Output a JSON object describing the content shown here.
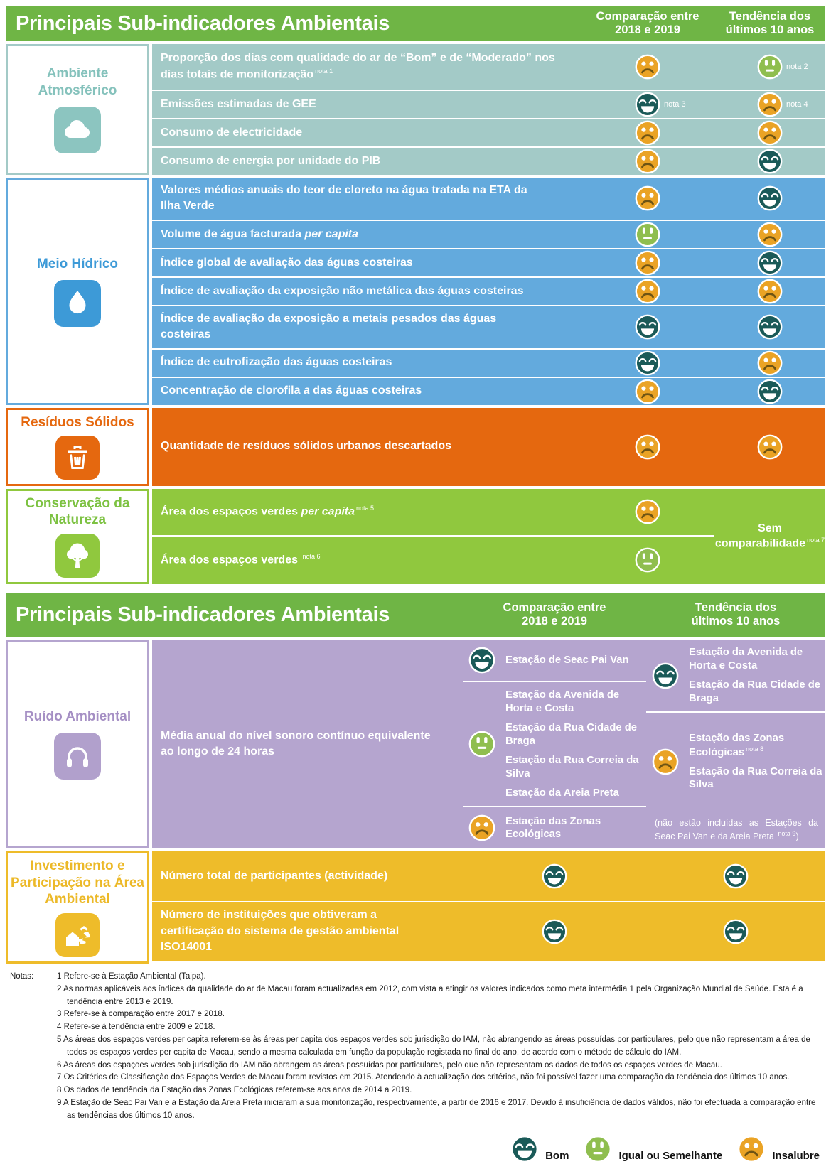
{
  "colors": {
    "header_green": "#6fb545",
    "atmos_bg": "#a3cac7",
    "atmos_tile": "#8cc5c0",
    "atmos_text": "#85c2bc",
    "water_bg": "#63aadd",
    "water_accent": "#3d9ad7",
    "waste_bg": "#e5680f",
    "nature_bg": "#90c83e",
    "nature_text": "#7dc242",
    "noise_bg": "#b5a5cf",
    "noise_text": "#a58fc4",
    "noise_tile": "#b1a0cc",
    "invest_bg": "#eebc2a",
    "invest_text": "#ecb928",
    "face_good": "#1a5a58",
    "face_equal": "#8fbe4f",
    "face_bad": "#eaa325",
    "face_bad_mouth": "#6e5414",
    "white": "#ffffff"
  },
  "header": {
    "title": "Principais Sub-indicadores Ambientais",
    "comp_l1": "Comparação entre",
    "comp_l2": "2018 e 2019",
    "trend_l1": "Tendência dos",
    "trend_l2": "últimos 10 anos"
  },
  "sections": {
    "atmos": {
      "label": "Ambiente Atmosférico",
      "icon": "cloud-icon",
      "rows": [
        {
          "pre": "Proporção dos dias com qualidade do ar de “Bom” e de “Moderado” nos dias totais de monitorização",
          "nota": "nota 1",
          "comp": "insalubre",
          "tend": "igual",
          "tend_nota": "nota 2"
        },
        {
          "pre": "Emissões estimadas de GEE",
          "comp": "bom",
          "comp_nota": "nota 3",
          "tend": "insalubre",
          "tend_nota": "nota 4"
        },
        {
          "pre": "Consumo de electricidade",
          "comp": "insalubre",
          "tend": "insalubre"
        },
        {
          "pre": "Consumo de energia por unidade do PIB",
          "comp": "insalubre",
          "tend": "bom"
        }
      ]
    },
    "water": {
      "label": "Meio Hídrico",
      "icon": "water-drop-icon",
      "rows": [
        {
          "pre": "Valores médios anuais do teor de cloreto na água tratada na ETA da Ilha Verde",
          "comp": "insalubre",
          "tend": "bom"
        },
        {
          "pre": "Volume de água facturada ",
          "it": "per capita",
          "comp": "igual",
          "tend": "insalubre"
        },
        {
          "pre": "Índice global de avaliação das águas costeiras",
          "comp": "insalubre",
          "tend": "bom"
        },
        {
          "pre": "Índice de avaliação da exposição não metálica das águas costeiras",
          "comp": "insalubre",
          "tend": "insalubre"
        },
        {
          "pre": "Índice de avaliação da exposição a metais pesados das águas costeiras",
          "comp": "bom",
          "tend": "bom"
        },
        {
          "pre": "Índice de eutrofização das águas costeiras",
          "comp": "bom",
          "tend": "insalubre"
        },
        {
          "pre": "Concentração de clorofila ",
          "it": "a",
          "post": " das águas costeiras",
          "comp": "insalubre",
          "tend": "bom"
        }
      ]
    },
    "waste": {
      "label": "Resíduos Sólidos",
      "icon": "trash-icon",
      "rows": [
        {
          "pre": "Quantidade de resíduos sólidos urbanos descartados",
          "comp": "insalubre",
          "tend": "insalubre"
        }
      ]
    },
    "nature": {
      "label": "Conservação da Natureza",
      "icon": "tree-icon",
      "rows": [
        {
          "pre": "Área dos espaços verdes ",
          "it": "per capita",
          "nota": "nota 5",
          "comp": "insalubre"
        },
        {
          "pre": "Área dos espaços verdes ",
          "nota": "nota 6",
          "comp": "igual"
        }
      ],
      "span_l1": "Sem",
      "span_l2": "comparabilidade",
      "span_nota": "nota 7"
    },
    "noise": {
      "label": "Ruído Ambiental",
      "icon": "headphones-icon",
      "indicator": "Média anual do nível sonoro contínuo equivalente ao longo de 24 horas",
      "comp_groups": [
        {
          "face": "bom",
          "stations": [
            "Estação de Seac Pai Van"
          ]
        },
        {
          "face": "igual",
          "stations": [
            "Estação da Avenida de Horta e Costa",
            "Estação da Rua Cidade de Braga",
            "Estação da Rua Correia da Silva",
            "Estação da Areia Preta"
          ]
        },
        {
          "face": "insalubre",
          "stations": [
            "Estação das Zonas Ecológicas"
          ]
        }
      ],
      "trend_groups": [
        {
          "face": "bom",
          "stations": [
            "Estação da Avenida de Horta e Costa",
            "Estação da Rua Cidade de Braga"
          ]
        },
        {
          "face": "insalubre",
          "stations": [
            "Estação das Zonas Ecológicas",
            "Estação da Rua Correia da Silva"
          ],
          "station0_nota": "nota 8"
        }
      ],
      "trend_note_pre": "(não estão incluídas as Estações da Seac Pai Van e da Areia Preta ",
      "trend_note_sup": "nota 9",
      "trend_note_post": ")"
    },
    "invest": {
      "label": "Investimento e Participação na Área Ambiental",
      "icon": "recycle-house-icon",
      "rows": [
        {
          "pre": "Número total de participantes (actividade)",
          "comp": "bom",
          "tend": "bom"
        },
        {
          "pre": "Número de instituições que obtiveram a certificação do sistema de gestão ambiental ISO14001",
          "comp": "bom",
          "tend": "bom"
        }
      ]
    }
  },
  "notes": {
    "label": "Notas:",
    "items": [
      {
        "num": "1",
        "text": "Refere-se à Estação Ambiental (Taipa)."
      },
      {
        "num": "2",
        "text": "As normas aplicáveis aos índices da qualidade do ar de Macau foram actualizadas em 2012, com vista a atingir os valores indicados como meta intermédia 1 pela Organização Mundial de Saúde. Esta é a tendência entre 2013 e 2019."
      },
      {
        "num": "3",
        "text": "Refere-se à comparação entre 2017 e 2018."
      },
      {
        "num": "4",
        "text": "Refere-se à tendência entre 2009 e 2018."
      },
      {
        "num": "5",
        "text": "As áreas dos espaços verdes per capita referem-se às áreas per capita dos espaços verdes sob jurisdição do IAM, não abrangendo as áreas possuídas por particulares, pelo que não representam a área de todos os espaços verdes per capita de Macau, sendo a mesma calculada em função da população registada no final do ano, de acordo com o método de cálculo do IAM."
      },
      {
        "num": "6",
        "text": "As áreas dos espaçoes verdes sob jurisdição do IAM não abrangem as áreas possuídas por particulares, pelo que não representam os dados de todos os espaços verdes de Macau."
      },
      {
        "num": "7",
        "text": "Os Critérios de Classificação dos Espaços Verdes de Macau foram revistos em 2015. Atendendo à actualização dos critérios, não foi possível fazer uma comparação da tendência dos últimos 10 anos."
      },
      {
        "num": "8",
        "text": "Os dados de tendência da Estação das Zonas Ecológicas referem-se aos anos de 2014 a 2019."
      },
      {
        "num": "9",
        "text": "A Estação de Seac Pai Van e a Estação da Areia Preta iniciaram a sua monitorização, respectivamente, a partir de 2016 e 2017. Devido à insuficiência de dados válidos, não foi efectuada a comparação entre as tendências dos últimos 10 anos."
      }
    ]
  },
  "legend": {
    "items": [
      {
        "face": "bom",
        "label": "Bom"
      },
      {
        "face": "igual",
        "label": "Igual ou Semelhante"
      },
      {
        "face": "insalubre",
        "label": "Insalubre"
      }
    ]
  }
}
